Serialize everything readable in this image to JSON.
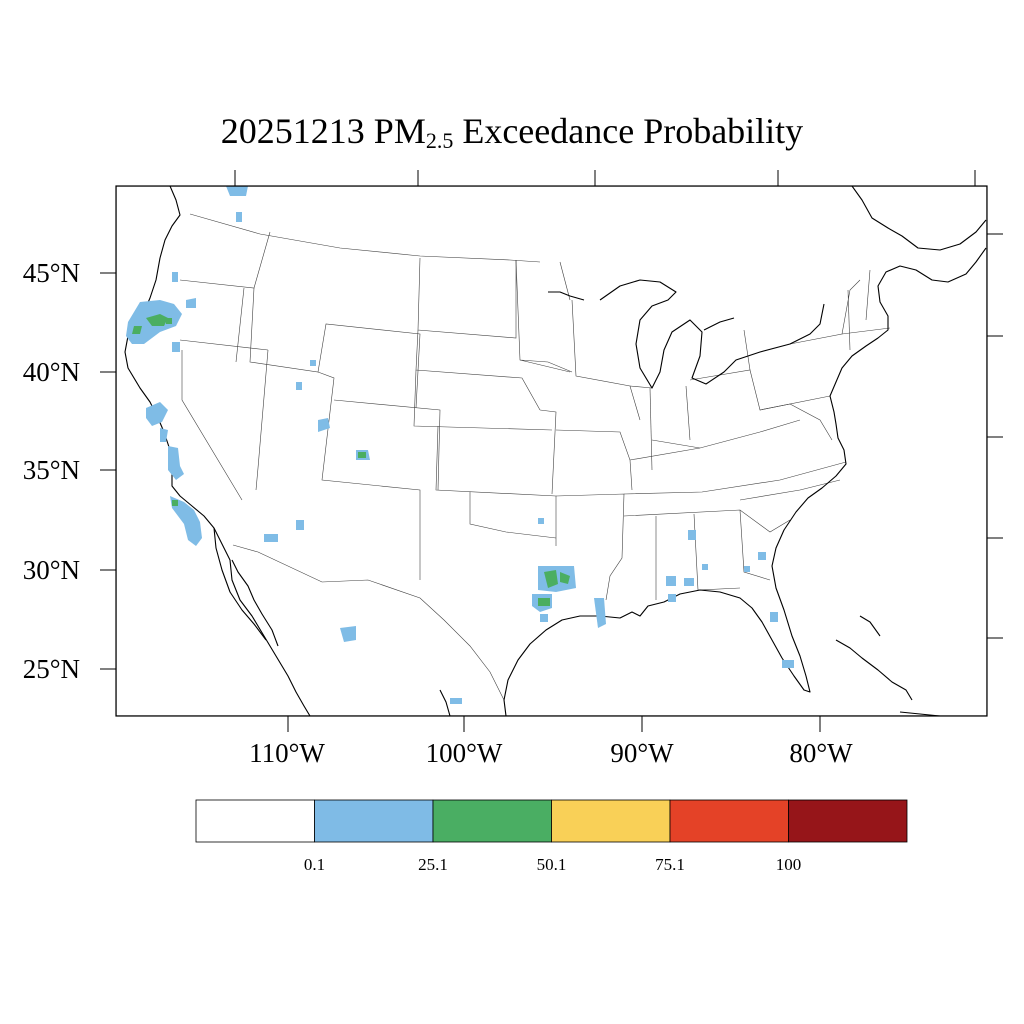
{
  "title": {
    "prefix": "20251213 PM",
    "subscript": "2.5",
    "suffix": " Exceedance Probability"
  },
  "map": {
    "lat_labels": [
      "45°N",
      "40°N",
      "35°N",
      "30°N",
      "25°N"
    ],
    "lon_labels": [
      "110°W",
      "100°W",
      "90°W",
      "80°W"
    ],
    "data_color": "#7fbce6",
    "high_color": "#4bae61"
  },
  "colorbar": {
    "colors": [
      "#ffffff",
      "#7fbbe6",
      "#4aae63",
      "#f9d057",
      "#e44227",
      "#961519"
    ],
    "tick_labels": [
      "0.1",
      "25.1",
      "50.1",
      "75.1",
      "100"
    ]
  }
}
